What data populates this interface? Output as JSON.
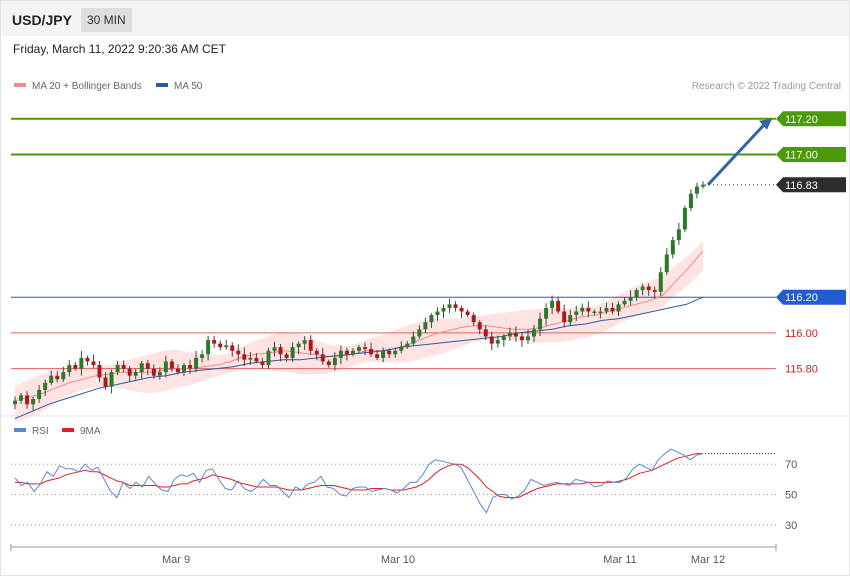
{
  "header": {
    "pair": "USD/JPY",
    "timeframe": "30 MIN"
  },
  "timestamp": "Friday, March 11, 2022 9:20:36 AM CET",
  "credit": "Research © 2022 Trading Central",
  "legend_main": [
    {
      "label": "MA 20 + Bollinger Bands",
      "color": "#f08a8a"
    },
    {
      "label": "MA 50",
      "color": "#2c5aa0"
    }
  ],
  "legend_rsi": [
    {
      "label": "RSI",
      "color": "#5b86d6"
    },
    {
      "label": "9MA",
      "color": "#e02020"
    }
  ],
  "chart_data": [
    {
      "type": "candlestick",
      "ylim": [
        115.54,
        117.35
      ],
      "levels": [
        {
          "value": 117.2,
          "label": "117.20",
          "kind": "resistance",
          "color": "#4a9a0a"
        },
        {
          "value": 117.0,
          "label": "117.00",
          "kind": "resistance",
          "color": "#4a9a0a"
        },
        {
          "value": 116.83,
          "label": "116.83",
          "kind": "last",
          "color": "#2d2d2d"
        },
        {
          "value": 116.2,
          "label": "116.20",
          "kind": "pivot",
          "color": "#1f5cd6"
        },
        {
          "value": 116.0,
          "label": "116.00",
          "kind": "support",
          "color": "#e06060"
        },
        {
          "value": 115.8,
          "label": "115.80",
          "kind": "support",
          "color": "#e06060"
        }
      ],
      "x_ticks": [
        "Mar 9",
        "Mar 10",
        "Mar 11",
        "Mar 12"
      ],
      "close_series": [
        115.62,
        115.65,
        115.6,
        115.63,
        115.68,
        115.72,
        115.76,
        115.74,
        115.78,
        115.82,
        115.8,
        115.86,
        115.84,
        115.82,
        115.75,
        115.7,
        115.78,
        115.82,
        115.8,
        115.76,
        115.78,
        115.83,
        115.8,
        115.76,
        115.78,
        115.84,
        115.8,
        115.78,
        115.82,
        115.8,
        115.86,
        115.88,
        115.96,
        115.94,
        115.92,
        115.93,
        115.9,
        115.88,
        115.85,
        115.86,
        115.84,
        115.82,
        115.9,
        115.92,
        115.88,
        115.86,
        115.92,
        115.94,
        115.96,
        115.9,
        115.88,
        115.84,
        115.82,
        115.86,
        115.9,
        115.88,
        115.9,
        115.92,
        115.91,
        115.88,
        115.86,
        115.9,
        115.88,
        115.9,
        115.92,
        115.94,
        115.98,
        116.02,
        116.06,
        116.1,
        116.12,
        116.14,
        116.16,
        116.14,
        116.12,
        116.1,
        116.06,
        116.02,
        115.98,
        115.94,
        115.96,
        115.98,
        116.0,
        115.98,
        115.96,
        115.98,
        116.02,
        116.08,
        116.14,
        116.18,
        116.12,
        116.06,
        116.1,
        116.12,
        116.14,
        116.12,
        116.12,
        116.12,
        116.14,
        116.12,
        116.16,
        116.18,
        116.2,
        116.24,
        116.26,
        116.24,
        116.23,
        116.34,
        116.44,
        116.52,
        116.58,
        116.7,
        116.78,
        116.82,
        116.83
      ],
      "ma20": [
        115.62,
        115.64,
        115.66,
        115.69,
        115.72,
        115.74,
        115.76,
        115.77,
        115.78,
        115.78,
        115.78,
        115.79,
        115.8,
        115.8,
        115.81,
        115.82,
        115.84,
        115.87,
        115.88,
        115.89,
        115.9,
        115.89,
        115.88,
        115.87,
        115.87,
        115.88,
        115.9,
        115.9,
        115.91,
        115.93,
        115.96,
        115.99,
        116.01,
        116.03,
        116.04,
        116.04,
        116.03,
        116.02,
        116.02,
        116.03,
        116.05,
        116.07,
        116.09,
        116.1,
        116.12,
        116.14,
        116.16,
        116.18,
        116.21,
        116.29,
        116.37,
        116.46
      ],
      "ma50": [
        115.52,
        115.56,
        115.6,
        115.63,
        115.66,
        115.69,
        115.71,
        115.73,
        115.75,
        115.76,
        115.78,
        115.79,
        115.8,
        115.81,
        115.83,
        115.84,
        115.85,
        115.85,
        115.86,
        115.87,
        115.88,
        115.89,
        115.9,
        115.92,
        115.93,
        115.94,
        115.95,
        115.96,
        115.97,
        115.98,
        116.0,
        116.01,
        116.02,
        116.04,
        116.05,
        116.07,
        116.08,
        116.1,
        116.12,
        116.14,
        116.16,
        116.2
      ]
    },
    {
      "type": "line",
      "name": "RSI",
      "ylim": [
        20,
        86
      ],
      "y_ticks": [
        30,
        50,
        70
      ],
      "series": [
        {
          "name": "RSI",
          "values": [
            61,
            56,
            58,
            52,
            57,
            65,
            62,
            69,
            67,
            67,
            65,
            70,
            66,
            68,
            60,
            52,
            48,
            58,
            54,
            58,
            55,
            62,
            57,
            53,
            52,
            60,
            63,
            62,
            64,
            58,
            66,
            67,
            60,
            54,
            53,
            59,
            54,
            52,
            55,
            60,
            56,
            56,
            52,
            48,
            55,
            53,
            57,
            58,
            62,
            55,
            54,
            50,
            49,
            54,
            55,
            55,
            52,
            53,
            54,
            53,
            51,
            54,
            58,
            58,
            63,
            70,
            73,
            72,
            71,
            70,
            68,
            60,
            52,
            44,
            38,
            48,
            50,
            50,
            47,
            49,
            53,
            60,
            58,
            56,
            57,
            58,
            57,
            56,
            60,
            59,
            58,
            55,
            56,
            59,
            58,
            58,
            61,
            67,
            70,
            68,
            66,
            73,
            77,
            80,
            78,
            76,
            73,
            76,
            77
          ]
        },
        {
          "name": "9MA",
          "values": [
            58,
            58,
            57,
            57,
            57,
            59,
            60,
            61,
            63,
            64,
            65,
            66,
            65,
            65,
            63,
            61,
            59,
            58,
            56,
            56,
            56,
            56,
            56,
            55,
            55,
            56,
            57,
            57,
            59,
            60,
            61,
            63,
            62,
            61,
            60,
            58,
            57,
            56,
            55,
            55,
            55,
            55,
            54,
            53,
            53,
            53,
            54,
            55,
            56,
            56,
            56,
            55,
            54,
            53,
            53,
            53,
            54,
            54,
            54,
            53,
            53,
            53,
            54,
            55,
            57,
            60,
            64,
            67,
            69,
            70,
            70,
            68,
            64,
            60,
            55,
            52,
            49,
            48,
            48,
            48,
            50,
            52,
            54,
            55,
            56,
            57,
            57,
            57,
            57,
            57,
            58,
            58,
            58,
            58,
            58,
            59,
            60,
            62,
            64,
            65,
            66,
            68,
            70,
            72,
            74,
            75,
            76,
            77,
            77
          ]
        }
      ]
    }
  ]
}
